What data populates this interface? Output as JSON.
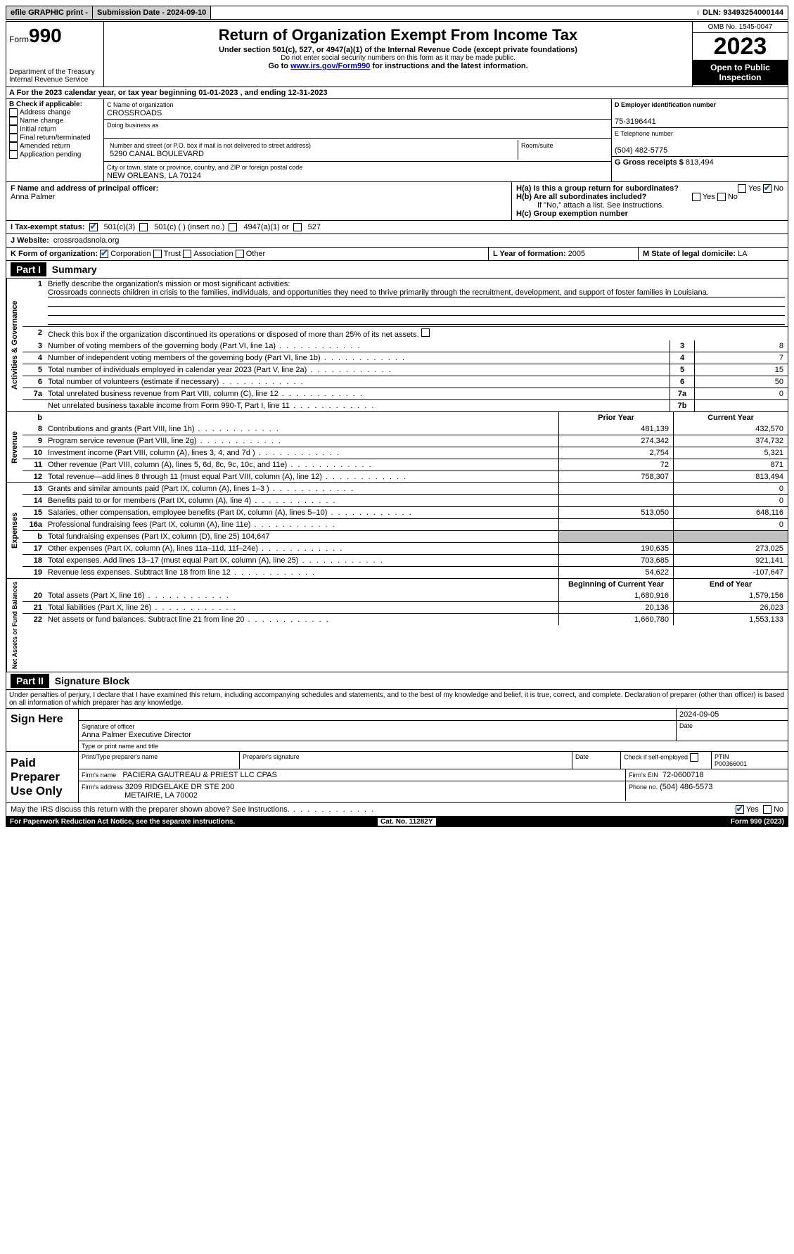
{
  "topbar": {
    "efile": "efile GRAPHIC print -",
    "submission": "Submission Date - 2024-09-10",
    "dln": "DLN: 93493254000144"
  },
  "header": {
    "form_label": "Form",
    "form_num": "990",
    "dept": "Department of the Treasury\nInternal Revenue Service",
    "title": "Return of Organization Exempt From Income Tax",
    "sub": "Under section 501(c), 527, or 4947(a)(1) of the Internal Revenue Code (except private foundations)",
    "note1": "Do not enter social security numbers on this form as it may be made public.",
    "note2_pre": "Go to ",
    "note2_link": "www.irs.gov/Form990",
    "note2_post": " for instructions and the latest information.",
    "omb": "OMB No. 1545-0047",
    "year": "2023",
    "inspect": "Open to Public Inspection"
  },
  "row_a": "A  For the 2023 calendar year, or tax year beginning 01-01-2023   , and ending 12-31-2023",
  "section_b": {
    "title": "B Check if applicable:",
    "items": [
      "Address change",
      "Name change",
      "Initial return",
      "Final return/terminated",
      "Amended return",
      "Application pending"
    ]
  },
  "section_c": {
    "name_label": "C Name of organization",
    "name": "CROSSROADS",
    "dba_label": "Doing business as",
    "street_label": "Number and street (or P.O. box if mail is not delivered to street address)",
    "street": "5290 CANAL BOULEVARD",
    "room_label": "Room/suite",
    "city_label": "City or town, state or province, country, and ZIP or foreign postal code",
    "city": "NEW ORLEANS, LA   70124"
  },
  "section_d": {
    "ein_label": "D Employer identification number",
    "ein": "75-3196441",
    "phone_label": "E Telephone number",
    "phone": "(504) 482-5775",
    "gross_label": "G Gross receipts $",
    "gross": "813,494"
  },
  "section_f": {
    "label": "F  Name and address of principal officer:",
    "name": "Anna Palmer"
  },
  "section_h": {
    "ha": "H(a)  Is this a group return for subordinates?",
    "hb": "H(b)  Are all subordinates included?",
    "hb_note": "If \"No,\" attach a list. See instructions.",
    "hc": "H(c)  Group exemption number",
    "yes": "Yes",
    "no": "No"
  },
  "row_i": {
    "label": "I   Tax-exempt status:",
    "o1": "501(c)(3)",
    "o2": "501(c) (  ) (insert no.)",
    "o3": "4947(a)(1) or",
    "o4": "527"
  },
  "row_j": {
    "label": "J   Website:",
    "value": "crossroadsnola.org"
  },
  "row_k": {
    "label": "K Form of organization:",
    "o1": "Corporation",
    "o2": "Trust",
    "o3": "Association",
    "o4": "Other"
  },
  "row_l": {
    "label": "L Year of formation:",
    "value": "2005"
  },
  "row_m": {
    "label": "M State of legal domicile:",
    "value": "LA"
  },
  "part1": {
    "hdr": "Part I",
    "title": "Summary",
    "tab1": "Activities & Governance",
    "tab2": "Revenue",
    "tab3": "Expenses",
    "tab4": "Net Assets or Fund Balances",
    "line1_label": "Briefly describe the organization's mission or most significant activities:",
    "line1_text": "Crossroads connects children in crisis to the families, individuals, and opportunities they need to thrive primarily through the recruitment, development, and support of foster families in Louisiana.",
    "line2": "Check this box          if the organization discontinued its operations or disposed of more than 25% of its net assets.",
    "lines_gov": [
      {
        "n": "3",
        "d": "Number of voting members of the governing body (Part VI, line 1a)",
        "box": "3",
        "v": "8"
      },
      {
        "n": "4",
        "d": "Number of independent voting members of the governing body (Part VI, line 1b)",
        "box": "4",
        "v": "7"
      },
      {
        "n": "5",
        "d": "Total number of individuals employed in calendar year 2023 (Part V, line 2a)",
        "box": "5",
        "v": "15"
      },
      {
        "n": "6",
        "d": "Total number of volunteers (estimate if necessary)",
        "box": "6",
        "v": "50"
      },
      {
        "n": "7a",
        "d": "Total unrelated business revenue from Part VIII, column (C), line 12",
        "box": "7a",
        "v": "0"
      },
      {
        "n": "",
        "d": "Net unrelated business taxable income from Form 990-T, Part I, line 11",
        "box": "7b",
        "v": ""
      }
    ],
    "hdr_prior": "Prior Year",
    "hdr_current": "Current Year",
    "lines_rev": [
      {
        "n": "8",
        "d": "Contributions and grants (Part VIII, line 1h)",
        "p": "481,139",
        "c": "432,570"
      },
      {
        "n": "9",
        "d": "Program service revenue (Part VIII, line 2g)",
        "p": "274,342",
        "c": "374,732"
      },
      {
        "n": "10",
        "d": "Investment income (Part VIII, column (A), lines 3, 4, and 7d )",
        "p": "2,754",
        "c": "5,321"
      },
      {
        "n": "11",
        "d": "Other revenue (Part VIII, column (A), lines 5, 6d, 8c, 9c, 10c, and 11e)",
        "p": "72",
        "c": "871"
      },
      {
        "n": "12",
        "d": "Total revenue—add lines 8 through 11 (must equal Part VIII, column (A), line 12)",
        "p": "758,307",
        "c": "813,494"
      }
    ],
    "lines_exp": [
      {
        "n": "13",
        "d": "Grants and similar amounts paid (Part IX, column (A), lines 1–3 )",
        "p": "",
        "c": "0"
      },
      {
        "n": "14",
        "d": "Benefits paid to or for members (Part IX, column (A), line 4)",
        "p": "",
        "c": "0"
      },
      {
        "n": "15",
        "d": "Salaries, other compensation, employee benefits (Part IX, column (A), lines 5–10)",
        "p": "513,050",
        "c": "648,116"
      },
      {
        "n": "16a",
        "d": "Professional fundraising fees (Part IX, column (A), line 11e)",
        "p": "",
        "c": "0"
      },
      {
        "n": "b",
        "d": "Total fundraising expenses (Part IX, column (D), line 25) 104,647",
        "p": "shade",
        "c": "shade"
      },
      {
        "n": "17",
        "d": "Other expenses (Part IX, column (A), lines 11a–11d, 11f–24e)",
        "p": "190,635",
        "c": "273,025"
      },
      {
        "n": "18",
        "d": "Total expenses. Add lines 13–17 (must equal Part IX, column (A), line 25)",
        "p": "703,685",
        "c": "921,141"
      },
      {
        "n": "19",
        "d": "Revenue less expenses. Subtract line 18 from line 12",
        "p": "54,622",
        "c": "-107,647"
      }
    ],
    "hdr_begin": "Beginning of Current Year",
    "hdr_end": "End of Year",
    "lines_net": [
      {
        "n": "20",
        "d": "Total assets (Part X, line 16)",
        "p": "1,680,916",
        "c": "1,579,156"
      },
      {
        "n": "21",
        "d": "Total liabilities (Part X, line 26)",
        "p": "20,136",
        "c": "26,023"
      },
      {
        "n": "22",
        "d": "Net assets or fund balances. Subtract line 21 from line 20",
        "p": "1,660,780",
        "c": "1,553,133"
      }
    ]
  },
  "part2": {
    "hdr": "Part II",
    "title": "Signature Block",
    "decl": "Under penalties of perjury, I declare that I have examined this return, including accompanying schedules and statements, and to the best of my knowledge and belief, it is true, correct, and complete. Declaration of preparer (other than officer) is based on all information of which preparer has any knowledge.",
    "sign_here": "Sign Here",
    "sig_officer": "Signature of officer",
    "officer": "Anna Palmer  Executive Director",
    "type_name": "Type or print name and title",
    "date": "2024-09-05",
    "date_label": "Date",
    "paid": "Paid Preparer Use Only",
    "prep_name_label": "Print/Type preparer's name",
    "prep_sig_label": "Preparer's signature",
    "check_if": "Check         if self-employed",
    "ptin_label": "PTIN",
    "ptin": "P00366001",
    "firm_name_label": "Firm's name",
    "firm_name": "PACIERA GAUTREAU & PRIEST LLC CPAS",
    "firm_ein_label": "Firm's EIN",
    "firm_ein": "72-0600718",
    "firm_addr_label": "Firm's address",
    "firm_addr": "3209 RIDGELAKE DR STE 200",
    "firm_city": "METAIRIE, LA   70002",
    "phone_label": "Phone no.",
    "phone": "(504) 486-5573",
    "discuss": "May the IRS discuss this return with the preparer shown above? See Instructions.",
    "paperwork": "For Paperwork Reduction Act Notice, see the separate instructions.",
    "cat": "Cat. No. 11282Y",
    "form": "Form 990 (2023)"
  }
}
